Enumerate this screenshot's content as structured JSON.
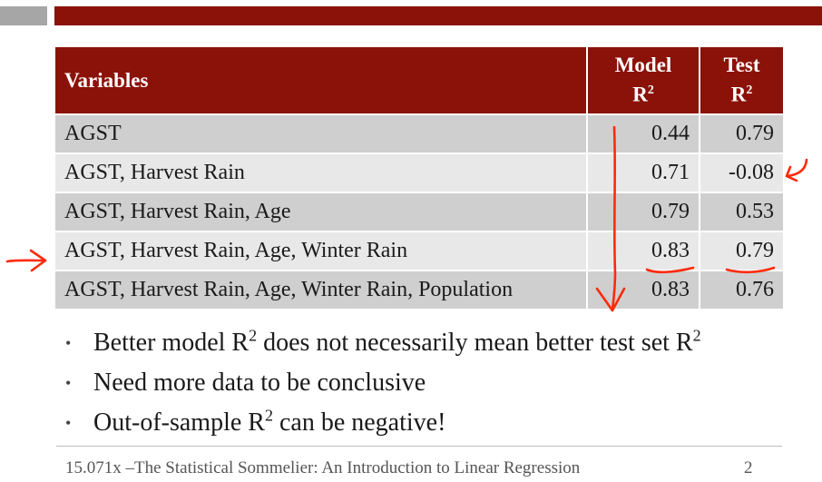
{
  "table": {
    "headers": {
      "variables": "Variables",
      "model_line1": "Model",
      "model_line2": "R",
      "test_line1": "Test",
      "test_line2": "R",
      "square": "2"
    },
    "rows": [
      {
        "variables": "AGST",
        "model_r2": "0.44",
        "test_r2": "0.79"
      },
      {
        "variables": "AGST,  Harvest Rain",
        "model_r2": "0.71",
        "test_r2": "-0.08"
      },
      {
        "variables": "AGST,  Harvest Rain,  Age",
        "model_r2": "0.79",
        "test_r2": "0.53"
      },
      {
        "variables": "AGST,  Harvest Rain,  Age,  Winter Rain",
        "model_r2": "0.83",
        "test_r2": "0.79"
      },
      {
        "variables": "AGST,  Harvest Rain,  Age,  Winter Rain, Population",
        "model_r2": "0.83",
        "test_r2": "0.76"
      }
    ]
  },
  "bullets": {
    "marker": "•",
    "b1_part1": "Better model R",
    "b1_sup1": "2",
    "b1_part2": " does not necessarily mean better test set R",
    "b1_sup2": "2",
    "b2": "Need more data to be conclusive",
    "b3_part1": "Out-of-sample R",
    "b3_sup": "2",
    "b3_part2": " can be negative!"
  },
  "footer": {
    "text": "15.071x –The Statistical Sommelier: An Introduction to Linear Regression",
    "page_number": "2"
  },
  "annotation_color": "#ff2a0a"
}
